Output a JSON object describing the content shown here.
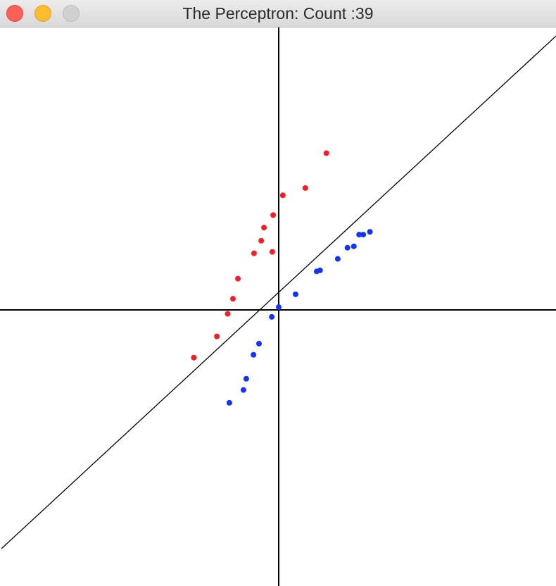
{
  "window": {
    "title": "The Perceptron: Count :39",
    "controls": {
      "close_color": "#fe5f57",
      "minimize_color": "#febc2e",
      "zoom_color": "#d0d0d0"
    }
  },
  "plot": {
    "axis_color": "#000000",
    "boundary_color": "#000000",
    "class_a_color": "#ff1a24",
    "class_b_color": "#1532ff",
    "x_range": [
      -1,
      1
    ],
    "y_range": [
      -1,
      1
    ],
    "boundary_line": {
      "slope": 0.919,
      "intercept": 0.063
    },
    "class_a_points": [
      [
        0.172,
        0.562
      ],
      [
        0.096,
        0.437
      ],
      [
        0.015,
        0.411
      ],
      [
        -0.02,
        0.34
      ],
      [
        -0.053,
        0.295
      ],
      [
        -0.063,
        0.248
      ],
      [
        -0.023,
        0.208
      ],
      [
        -0.089,
        0.203
      ],
      [
        -0.147,
        0.112
      ],
      [
        -0.165,
        0.04
      ],
      [
        -0.184,
        -0.014
      ],
      [
        -0.223,
        -0.095
      ],
      [
        -0.306,
        -0.171
      ]
    ],
    "class_b_points": [
      [
        0.329,
        0.28
      ],
      [
        0.305,
        0.27
      ],
      [
        0.29,
        0.27
      ],
      [
        0.271,
        0.228
      ],
      [
        0.248,
        0.223
      ],
      [
        0.213,
        0.183
      ],
      [
        0.149,
        0.142
      ],
      [
        0.137,
        0.138
      ],
      [
        0.061,
        0.056
      ],
      [
        0.0,
        0.01
      ],
      [
        -0.025,
        -0.025
      ],
      [
        -0.071,
        -0.121
      ],
      [
        -0.091,
        -0.161
      ],
      [
        -0.117,
        -0.247
      ],
      [
        -0.127,
        -0.287
      ],
      [
        -0.178,
        -0.333
      ]
    ]
  }
}
